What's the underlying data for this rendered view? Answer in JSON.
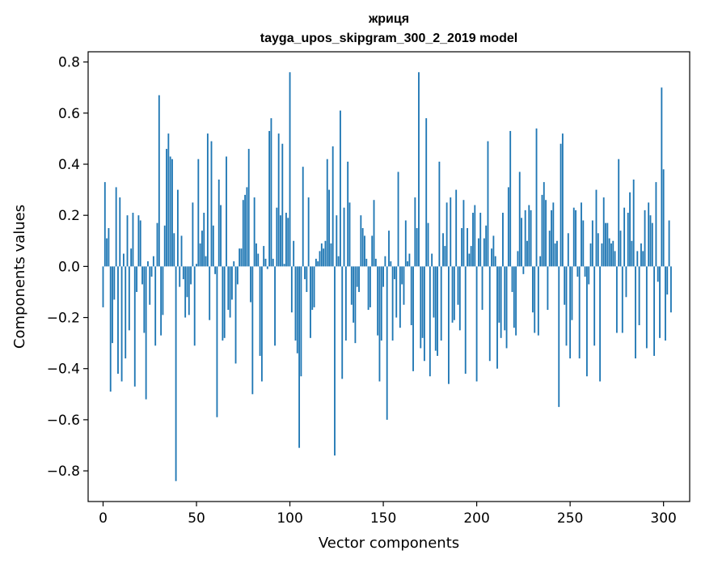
{
  "chart_data": {
    "type": "bar",
    "title": "жриця",
    "subtitle": "tayga_upos_skipgram_300_2_2019 model",
    "xlabel": "Vector components",
    "ylabel": "Components values",
    "xlim": [
      -8,
      314
    ],
    "ylim": [
      -0.92,
      0.84
    ],
    "xticks": [
      0,
      50,
      100,
      150,
      200,
      250,
      300
    ],
    "yticks": [
      -0.8,
      -0.6,
      -0.4,
      -0.2,
      0.0,
      0.2,
      0.4,
      0.6,
      0.8
    ],
    "ytick_labels": [
      "−0.8",
      "−0.6",
      "−0.4",
      "−0.2",
      "0.0",
      "0.2",
      "0.4",
      "0.6",
      "0.8"
    ],
    "grid": false,
    "bar_color": "#1f77b4",
    "values": [
      -0.16,
      0.33,
      0.11,
      0.15,
      -0.49,
      -0.3,
      -0.13,
      0.31,
      -0.42,
      0.27,
      -0.45,
      0.05,
      -0.36,
      0.2,
      -0.25,
      0.07,
      0.21,
      -0.47,
      -0.1,
      0.2,
      0.18,
      -0.07,
      -0.26,
      -0.52,
      0.02,
      -0.15,
      -0.04,
      0.04,
      -0.31,
      0.17,
      0.67,
      -0.27,
      -0.19,
      0.16,
      0.46,
      0.52,
      0.43,
      0.42,
      0.13,
      -0.84,
      0.3,
      -0.08,
      0.12,
      -0.05,
      -0.2,
      -0.12,
      -0.19,
      -0.07,
      0.25,
      -0.31,
      0.01,
      0.42,
      0.09,
      0.14,
      0.21,
      0.04,
      0.52,
      -0.21,
      0.49,
      0.16,
      -0.03,
      -0.59,
      0.34,
      0.24,
      -0.29,
      -0.28,
      0.43,
      -0.17,
      -0.2,
      -0.13,
      0.02,
      -0.38,
      -0.07,
      0.07,
      0.07,
      0.26,
      0.28,
      0.31,
      0.46,
      -0.14,
      -0.5,
      0.27,
      0.09,
      0.05,
      -0.35,
      -0.45,
      0.08,
      0.03,
      -0.01,
      0.53,
      0.58,
      0.03,
      -0.31,
      0.23,
      0.52,
      0.2,
      0.48,
      0.01,
      0.21,
      0.19,
      0.76,
      -0.18,
      0.1,
      -0.29,
      -0.34,
      -0.71,
      -0.43,
      0.39,
      -0.05,
      -0.1,
      0.27,
      -0.28,
      -0.17,
      -0.16,
      0.03,
      0.02,
      0.06,
      0.09,
      0.07,
      0.1,
      0.42,
      0.3,
      0.09,
      0.47,
      -0.74,
      0.2,
      0.04,
      0.61,
      -0.44,
      0.23,
      -0.29,
      0.41,
      0.25,
      -0.15,
      -0.22,
      -0.3,
      -0.08,
      -0.1,
      0.2,
      0.15,
      0.12,
      0.03,
      -0.17,
      -0.16,
      0.12,
      0.26,
      0.03,
      -0.27,
      -0.45,
      -0.29,
      -0.08,
      0.04,
      -0.6,
      0.14,
      0.02,
      -0.29,
      -0.05,
      -0.2,
      0.37,
      -0.24,
      -0.07,
      -0.15,
      0.18,
      0.02,
      0.05,
      -0.23,
      -0.41,
      0.27,
      0.15,
      0.76,
      -0.32,
      -0.28,
      -0.37,
      0.58,
      0.17,
      -0.43,
      0.05,
      -0.2,
      -0.33,
      -0.35,
      0.41,
      -0.29,
      0.13,
      0.08,
      0.25,
      -0.46,
      0.27,
      -0.22,
      -0.21,
      0.3,
      -0.15,
      -0.25,
      0.15,
      0.26,
      -0.42,
      0.15,
      0.05,
      0.08,
      0.21,
      0.24,
      -0.45,
      0.11,
      0.21,
      -0.17,
      0.11,
      0.16,
      0.49,
      -0.37,
      0.07,
      0.12,
      0.04,
      -0.4,
      -0.22,
      -0.28,
      0.21,
      -0.25,
      -0.32,
      0.31,
      0.53,
      -0.1,
      -0.24,
      -0.27,
      0.06,
      0.37,
      0.19,
      -0.03,
      0.22,
      0.1,
      0.24,
      0.22,
      -0.18,
      -0.26,
      0.54,
      -0.27,
      0.04,
      0.28,
      0.33,
      0.26,
      -0.17,
      0.14,
      0.22,
      0.25,
      0.09,
      0.1,
      -0.55,
      0.48,
      0.52,
      -0.15,
      -0.31,
      0.13,
      -0.36,
      -0.21,
      0.23,
      0.22,
      -0.04,
      -0.36,
      0.25,
      0.18,
      -0.04,
      -0.43,
      -0.07,
      0.09,
      0.18,
      -0.31,
      0.3,
      0.13,
      -0.45,
      0.09,
      0.27,
      0.17,
      0.17,
      0.11,
      0.09,
      0.1,
      0.06,
      -0.26,
      0.42,
      0.14,
      -0.26,
      0.23,
      -0.12,
      0.21,
      0.29,
      0.1,
      0.34,
      -0.36,
      0.06,
      -0.23,
      0.09,
      0.06,
      0.22,
      -0.32,
      0.25,
      0.2,
      0.17,
      -0.35,
      0.33,
      -0.06,
      -0.28,
      0.7,
      0.38,
      -0.29,
      -0.11,
      0.18,
      -0.18
    ]
  }
}
